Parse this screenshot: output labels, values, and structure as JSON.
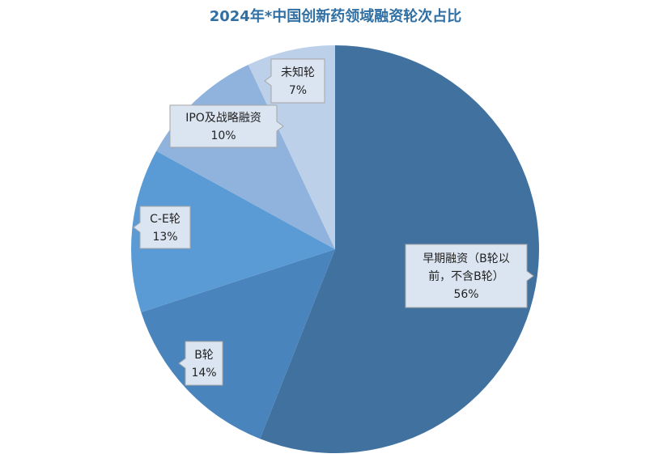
{
  "chart_data": {
    "type": "pie",
    "title": "2024年*中国创新药领域融资轮次占比",
    "slices": [
      {
        "label": "早期融资（B轮以前，不含B轮）",
        "label_lines": [
          "早期融资（B轮以",
          "前，不含B轮）"
        ],
        "value": 56,
        "display": "56%",
        "color": "#41729f"
      },
      {
        "label": "B轮",
        "label_lines": [
          "B轮"
        ],
        "value": 14,
        "display": "14%",
        "color": "#4a84bd"
      },
      {
        "label": "C-E轮",
        "label_lines": [
          "C-E轮"
        ],
        "value": 13,
        "display": "13%",
        "color": "#5b9bd5"
      },
      {
        "label": "IPO及战略融资",
        "label_lines": [
          "IPO及战略融资"
        ],
        "value": 10,
        "display": "10%",
        "color": "#8fb3dd"
      },
      {
        "label": "未知轮",
        "label_lines": [
          "未知轮"
        ],
        "value": 7,
        "display": "7%",
        "color": "#bcd0e9"
      }
    ],
    "start_angle_deg": 0,
    "direction": "clockwise",
    "legend": "none"
  }
}
